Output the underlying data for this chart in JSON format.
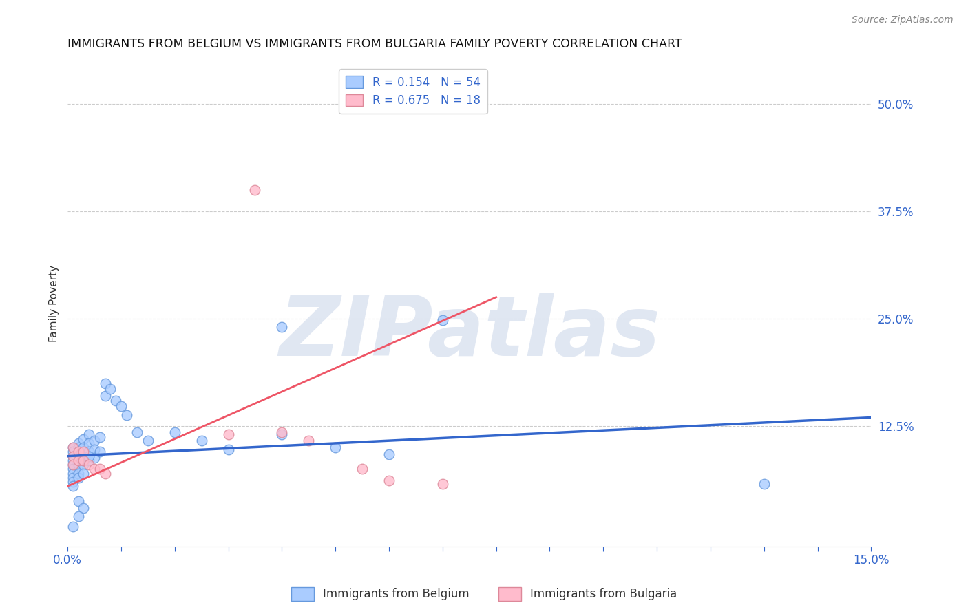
{
  "title": "IMMIGRANTS FROM BELGIUM VS IMMIGRANTS FROM BULGARIA FAMILY POVERTY CORRELATION CHART",
  "source_text": "Source: ZipAtlas.com",
  "ylabel": "Family Poverty",
  "xlim": [
    0.0,
    0.15
  ],
  "ylim": [
    -0.015,
    0.55
  ],
  "ytick_positions": [
    0.125,
    0.25,
    0.375,
    0.5
  ],
  "ytick_labels": [
    "12.5%",
    "25.0%",
    "37.5%",
    "50.0%"
  ],
  "grid_color": "#cccccc",
  "background_color": "#ffffff",
  "belgium_color": "#aaccff",
  "bulgaria_color": "#ffbbcc",
  "belgium_edge_color": "#6699dd",
  "bulgaria_edge_color": "#dd8899",
  "trend_belgium_color": "#3366cc",
  "trend_bulgaria_color": "#ee5566",
  "R_belgium": 0.154,
  "N_belgium": 54,
  "R_bulgaria": 0.675,
  "N_bulgaria": 18,
  "watermark": "ZIPatlas",
  "bel_trend_x": [
    0.0,
    0.15
  ],
  "bel_trend_y": [
    0.09,
    0.135
  ],
  "bul_trend_x": [
    0.0,
    0.08
  ],
  "bul_trend_y": [
    0.055,
    0.275
  ],
  "belgium_x": [
    0.001,
    0.001,
    0.001,
    0.001,
    0.001,
    0.001,
    0.001,
    0.001,
    0.001,
    0.001,
    0.002,
    0.002,
    0.002,
    0.002,
    0.002,
    0.002,
    0.002,
    0.002,
    0.003,
    0.003,
    0.003,
    0.003,
    0.003,
    0.004,
    0.004,
    0.004,
    0.004,
    0.005,
    0.005,
    0.005,
    0.006,
    0.006,
    0.007,
    0.007,
    0.008,
    0.009,
    0.01,
    0.011,
    0.013,
    0.015,
    0.02,
    0.025,
    0.03,
    0.04,
    0.04,
    0.05,
    0.06,
    0.07,
    0.002,
    0.003,
    0.13,
    0.002,
    0.004,
    0.001
  ],
  "belgium_y": [
    0.1,
    0.095,
    0.09,
    0.085,
    0.08,
    0.075,
    0.07,
    0.065,
    0.06,
    0.055,
    0.105,
    0.1,
    0.095,
    0.09,
    0.085,
    0.08,
    0.07,
    0.065,
    0.11,
    0.1,
    0.09,
    0.08,
    0.07,
    0.115,
    0.105,
    0.095,
    0.085,
    0.108,
    0.098,
    0.088,
    0.112,
    0.095,
    0.175,
    0.16,
    0.168,
    0.155,
    0.148,
    0.138,
    0.118,
    0.108,
    0.118,
    0.108,
    0.098,
    0.115,
    0.24,
    0.1,
    0.092,
    0.248,
    0.038,
    0.03,
    0.058,
    0.02,
    0.09,
    0.008
  ],
  "bulgaria_x": [
    0.001,
    0.001,
    0.001,
    0.002,
    0.002,
    0.003,
    0.003,
    0.004,
    0.005,
    0.006,
    0.007,
    0.03,
    0.035,
    0.04,
    0.045,
    0.055,
    0.06,
    0.07
  ],
  "bulgaria_y": [
    0.1,
    0.09,
    0.08,
    0.095,
    0.085,
    0.095,
    0.085,
    0.08,
    0.075,
    0.075,
    0.07,
    0.115,
    0.4,
    0.118,
    0.108,
    0.075,
    0.062,
    0.058
  ]
}
